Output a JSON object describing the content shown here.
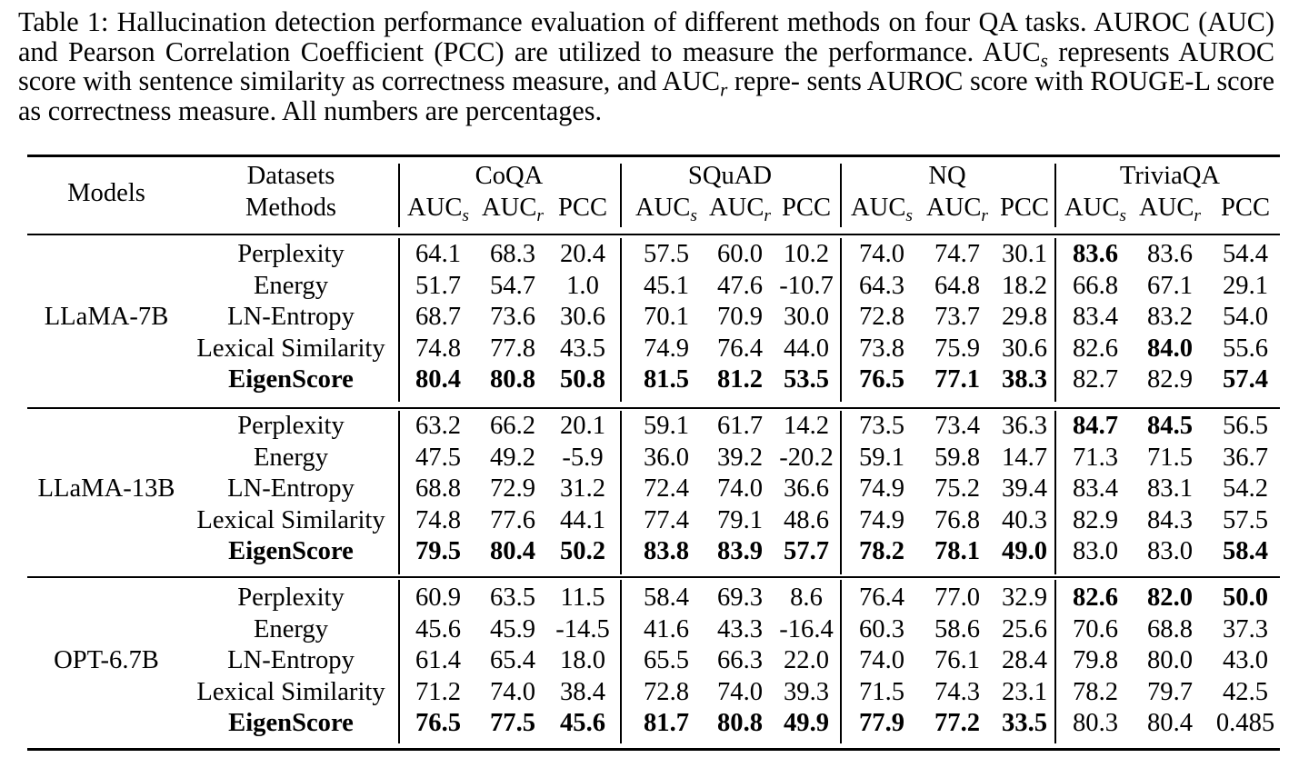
{
  "caption": {
    "line1": "Table 1: Hallucination detection performance evaluation of different methods on four QA tasks.",
    "line2": "AUROC (AUC) and Pearson Correlation Coefficient (PCC) are utilized to measure the performance.",
    "line3_a": "AUC",
    "line3_s": "s",
    "line3_b": " represents AUROC score with sentence similarity as correctness measure, and AUC",
    "line3_r": "r",
    "line3_c": " repre-",
    "line4": "sents AUROC score with ROUGE-L score as correctness measure. All numbers are percentages."
  },
  "header": {
    "models": "Models",
    "datasets": "Datasets",
    "methods": "Methods",
    "dataset_names": [
      "CoQA",
      "SQuAD",
      "NQ",
      "TriviaQA"
    ],
    "auc_base": "AUC",
    "s_sub": "s",
    "r_sub": "r",
    "pcc": "PCC"
  },
  "groups": [
    {
      "model": "LLaMA-7B",
      "rows": [
        {
          "method": "Perplexity",
          "bold_method": false,
          "values": [
            "64.1",
            "68.3",
            "20.4",
            "57.5",
            "60.0",
            "10.2",
            "74.0",
            "74.7",
            "30.1",
            "83.6",
            "83.6",
            "54.4"
          ],
          "bold": [
            false,
            false,
            false,
            false,
            false,
            false,
            false,
            false,
            false,
            true,
            false,
            false
          ]
        },
        {
          "method": "Energy",
          "bold_method": false,
          "values": [
            "51.7",
            "54.7",
            "1.0",
            "45.1",
            "47.6",
            "-10.7",
            "64.3",
            "64.8",
            "18.2",
            "66.8",
            "67.1",
            "29.1"
          ],
          "bold": [
            false,
            false,
            false,
            false,
            false,
            false,
            false,
            false,
            false,
            false,
            false,
            false
          ]
        },
        {
          "method": "LN-Entropy",
          "bold_method": false,
          "values": [
            "68.7",
            "73.6",
            "30.6",
            "70.1",
            "70.9",
            "30.0",
            "72.8",
            "73.7",
            "29.8",
            "83.4",
            "83.2",
            "54.0"
          ],
          "bold": [
            false,
            false,
            false,
            false,
            false,
            false,
            false,
            false,
            false,
            false,
            false,
            false
          ]
        },
        {
          "method": "Lexical Similarity",
          "bold_method": false,
          "values": [
            "74.8",
            "77.8",
            "43.5",
            "74.9",
            "76.4",
            "44.0",
            "73.8",
            "75.9",
            "30.6",
            "82.6",
            "84.0",
            "55.6"
          ],
          "bold": [
            false,
            false,
            false,
            false,
            false,
            false,
            false,
            false,
            false,
            false,
            true,
            false
          ]
        },
        {
          "method": "EigenScore",
          "bold_method": true,
          "values": [
            "80.4",
            "80.8",
            "50.8",
            "81.5",
            "81.2",
            "53.5",
            "76.5",
            "77.1",
            "38.3",
            "82.7",
            "82.9",
            "57.4"
          ],
          "bold": [
            true,
            true,
            true,
            true,
            true,
            true,
            true,
            true,
            true,
            false,
            false,
            true
          ]
        }
      ]
    },
    {
      "model": "LLaMA-13B",
      "rows": [
        {
          "method": "Perplexity",
          "bold_method": false,
          "values": [
            "63.2",
            "66.2",
            "20.1",
            "59.1",
            "61.7",
            "14.2",
            "73.5",
            "73.4",
            "36.3",
            "84.7",
            "84.5",
            "56.5"
          ],
          "bold": [
            false,
            false,
            false,
            false,
            false,
            false,
            false,
            false,
            false,
            true,
            true,
            false
          ]
        },
        {
          "method": "Energy",
          "bold_method": false,
          "values": [
            "47.5",
            "49.2",
            "-5.9",
            "36.0",
            "39.2",
            "-20.2",
            "59.1",
            "59.8",
            "14.7",
            "71.3",
            "71.5",
            "36.7"
          ],
          "bold": [
            false,
            false,
            false,
            false,
            false,
            false,
            false,
            false,
            false,
            false,
            false,
            false
          ]
        },
        {
          "method": "LN-Entropy",
          "bold_method": false,
          "values": [
            "68.8",
            "72.9",
            "31.2",
            "72.4",
            "74.0",
            "36.6",
            "74.9",
            "75.2",
            "39.4",
            "83.4",
            "83.1",
            "54.2"
          ],
          "bold": [
            false,
            false,
            false,
            false,
            false,
            false,
            false,
            false,
            false,
            false,
            false,
            false
          ]
        },
        {
          "method": "Lexical Similarity",
          "bold_method": false,
          "values": [
            "74.8",
            "77.6",
            "44.1",
            "77.4",
            "79.1",
            "48.6",
            "74.9",
            "76.8",
            "40.3",
            "82.9",
            "84.3",
            "57.5"
          ],
          "bold": [
            false,
            false,
            false,
            false,
            false,
            false,
            false,
            false,
            false,
            false,
            false,
            false
          ]
        },
        {
          "method": "EigenScore",
          "bold_method": true,
          "values": [
            "79.5",
            "80.4",
            "50.2",
            "83.8",
            "83.9",
            "57.7",
            "78.2",
            "78.1",
            "49.0",
            "83.0",
            "83.0",
            "58.4"
          ],
          "bold": [
            true,
            true,
            true,
            true,
            true,
            true,
            true,
            true,
            true,
            false,
            false,
            true
          ]
        }
      ]
    },
    {
      "model": "OPT-6.7B",
      "rows": [
        {
          "method": "Perplexity",
          "bold_method": false,
          "values": [
            "60.9",
            "63.5",
            "11.5",
            "58.4",
            "69.3",
            "8.6",
            "76.4",
            "77.0",
            "32.9",
            "82.6",
            "82.0",
            "50.0"
          ],
          "bold": [
            false,
            false,
            false,
            false,
            false,
            false,
            false,
            false,
            false,
            true,
            true,
            true
          ]
        },
        {
          "method": "Energy",
          "bold_method": false,
          "values": [
            "45.6",
            "45.9",
            "-14.5",
            "41.6",
            "43.3",
            "-16.4",
            "60.3",
            "58.6",
            "25.6",
            "70.6",
            "68.8",
            "37.3"
          ],
          "bold": [
            false,
            false,
            false,
            false,
            false,
            false,
            false,
            false,
            false,
            false,
            false,
            false
          ]
        },
        {
          "method": "LN-Entropy",
          "bold_method": false,
          "values": [
            "61.4",
            "65.4",
            "18.0",
            "65.5",
            "66.3",
            "22.0",
            "74.0",
            "76.1",
            "28.4",
            "79.8",
            "80.0",
            "43.0"
          ],
          "bold": [
            false,
            false,
            false,
            false,
            false,
            false,
            false,
            false,
            false,
            false,
            false,
            false
          ]
        },
        {
          "method": "Lexical Similarity",
          "bold_method": false,
          "values": [
            "71.2",
            "74.0",
            "38.4",
            "72.8",
            "74.0",
            "39.3",
            "71.5",
            "74.3",
            "23.1",
            "78.2",
            "79.7",
            "42.5"
          ],
          "bold": [
            false,
            false,
            false,
            false,
            false,
            false,
            false,
            false,
            false,
            false,
            false,
            false
          ]
        },
        {
          "method": "EigenScore",
          "bold_method": true,
          "values": [
            "76.5",
            "77.5",
            "45.6",
            "81.7",
            "80.8",
            "49.9",
            "77.9",
            "77.2",
            "33.5",
            "80.3",
            "80.4",
            "0.485"
          ],
          "bold": [
            true,
            true,
            true,
            true,
            true,
            true,
            true,
            true,
            true,
            false,
            false,
            false
          ]
        }
      ]
    }
  ]
}
